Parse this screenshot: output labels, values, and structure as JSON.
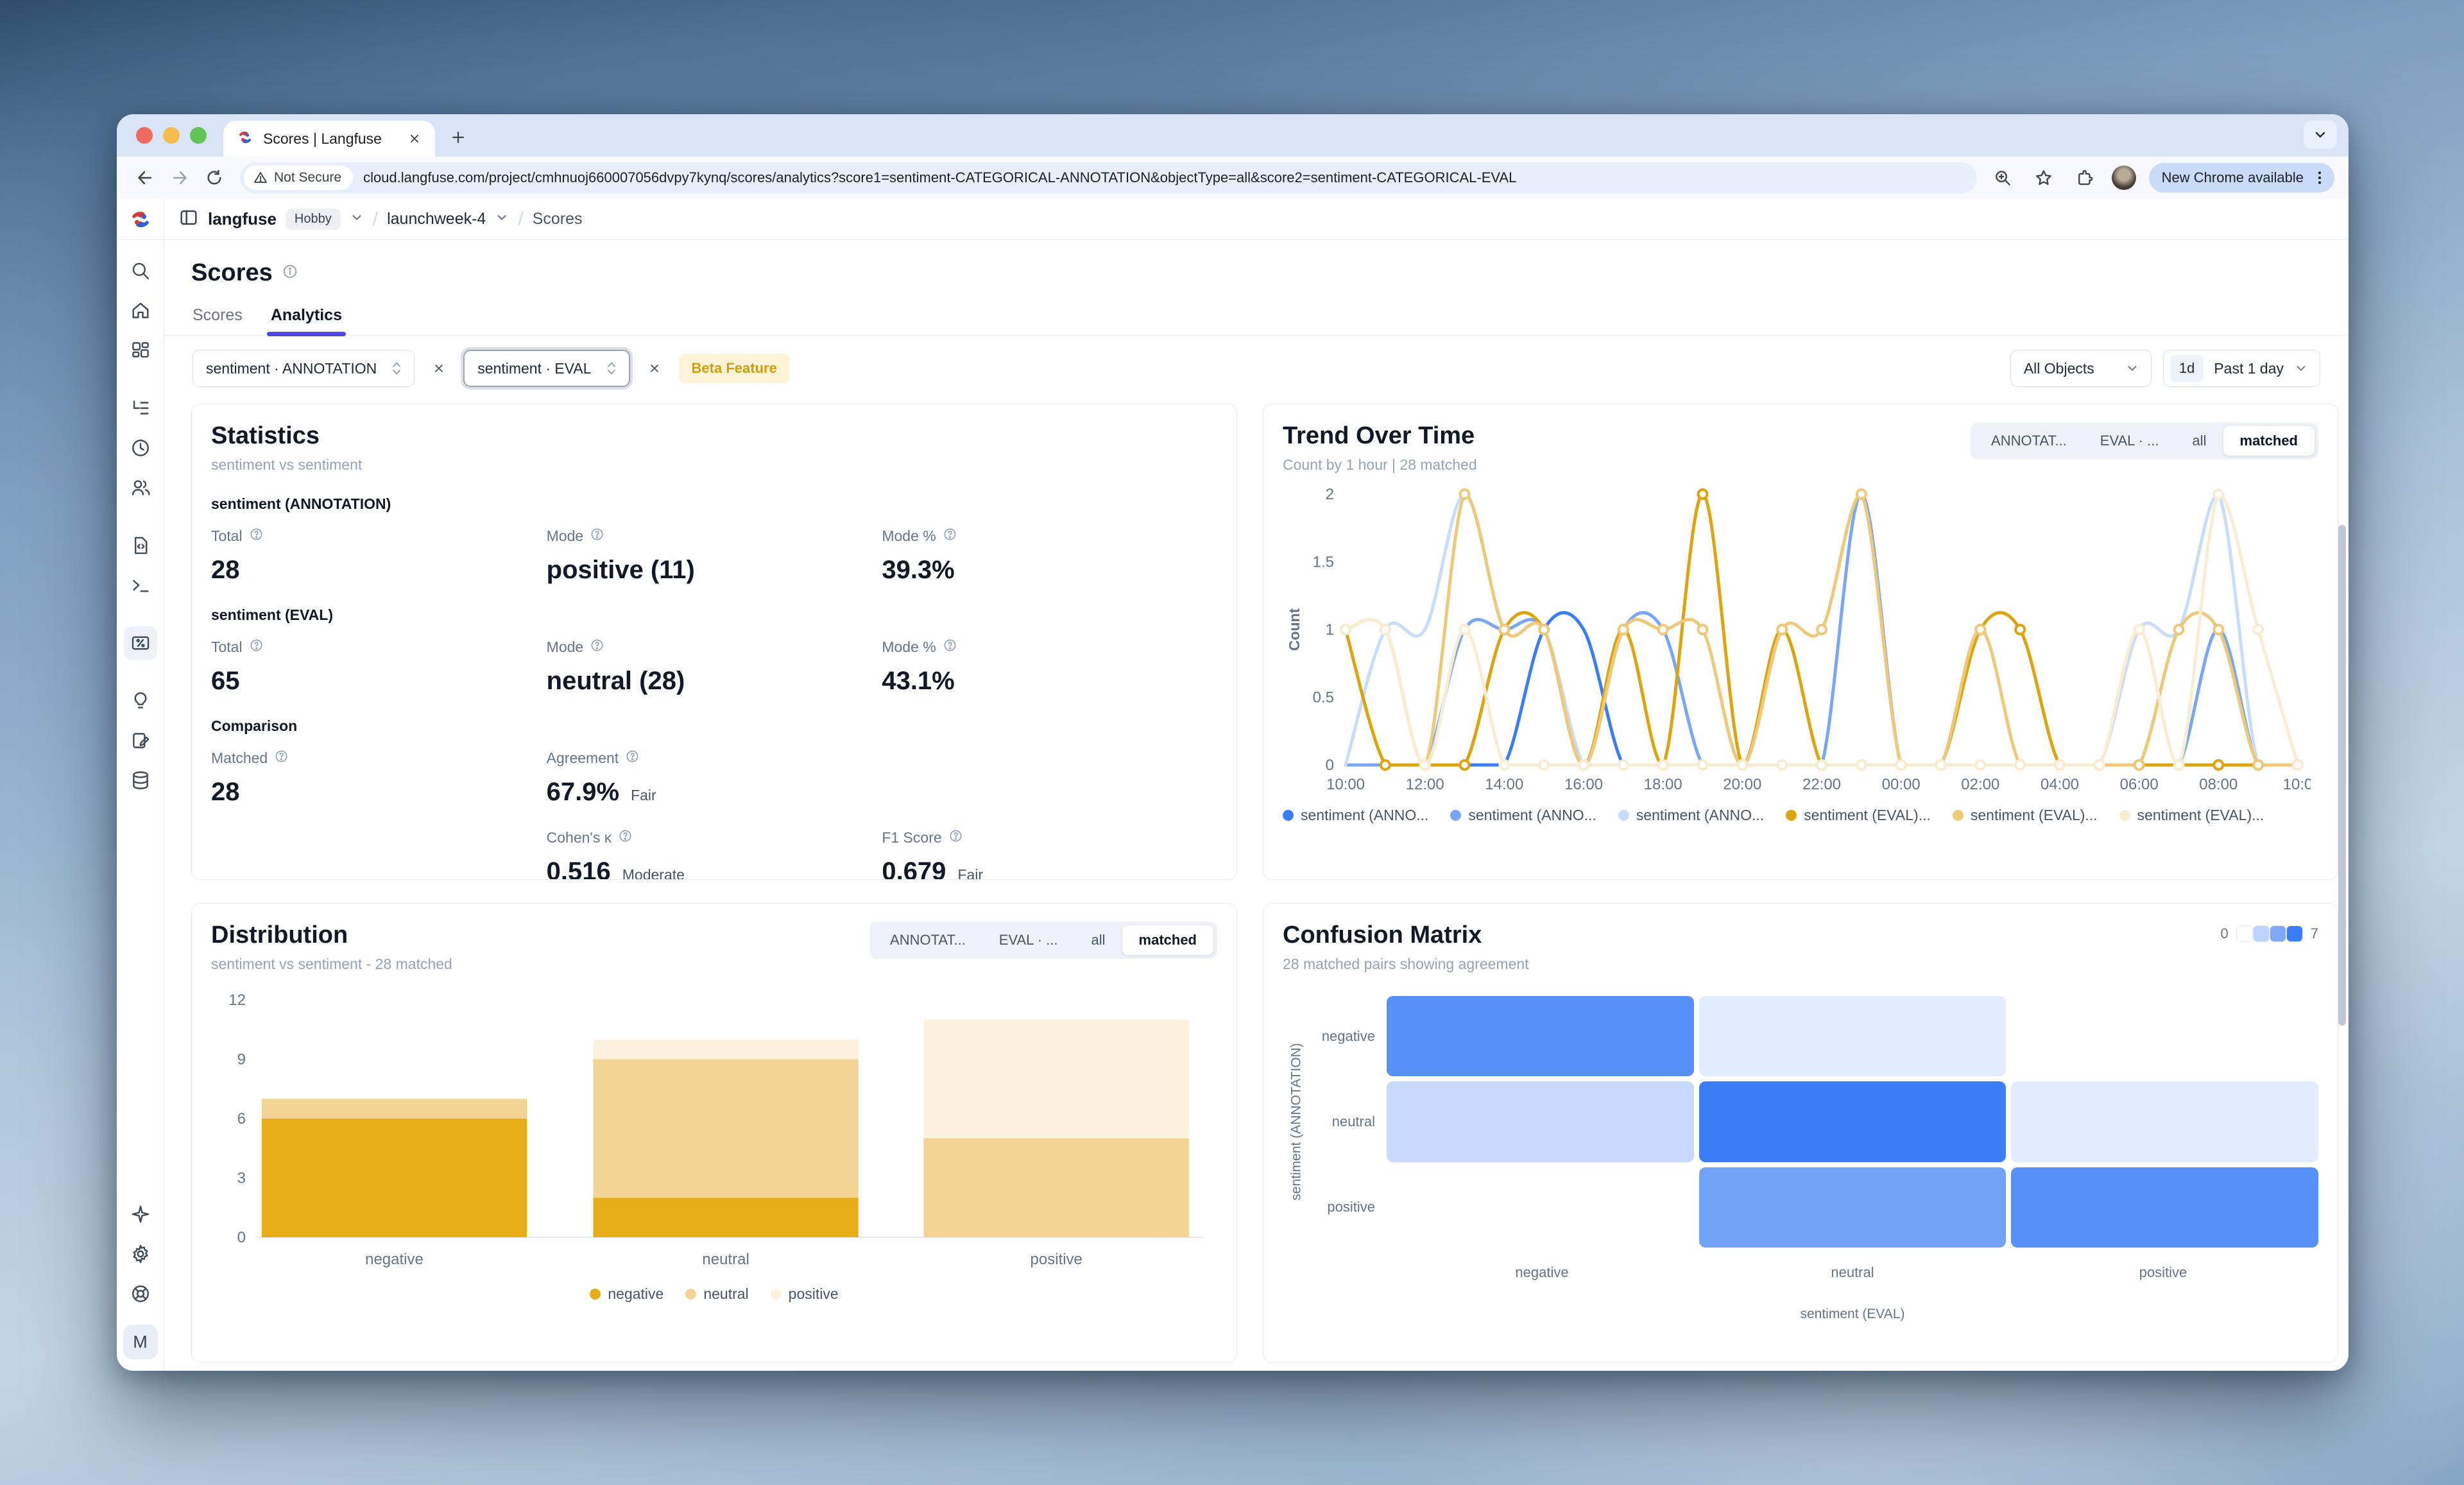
{
  "browser": {
    "tab_title": "Scores | Langfuse",
    "security_label": "Not Secure",
    "url": "cloud.langfuse.com/project/cmhnuoj660007056dvpy7kynq/scores/analytics?score1=sentiment-CATEGORICAL-ANNOTATION&objectType=all&score2=sentiment-CATEGORICAL-EVAL",
    "update_chip": "New Chrome available"
  },
  "header": {
    "org": "langfuse",
    "plan_badge": "Hobby",
    "project": "launchweek-4",
    "page": "Scores"
  },
  "sidebar": {
    "top_icons": [
      "search",
      "home",
      "dashboard",
      "tracing",
      "sessions",
      "users",
      "prompts",
      "playground",
      "scores",
      "evaluation",
      "annotation",
      "datasets"
    ],
    "active_icon": "scores",
    "bottom_icons": [
      "sparkle",
      "settings",
      "support"
    ],
    "avatar_label": "M"
  },
  "page": {
    "title": "Scores",
    "tabs": [
      "Scores",
      "Analytics"
    ],
    "active_tab": "Analytics",
    "filters": {
      "score1": "sentiment · ANNOTATION",
      "score2": "sentiment · EVAL",
      "beta_badge": "Beta Feature",
      "object_filter": "All Objects",
      "range_short": "1d",
      "range_label": "Past 1 day"
    }
  },
  "view_toggle": {
    "items": [
      "ANNOTAT...",
      "EVAL · ...",
      "all",
      "matched"
    ],
    "active": "matched"
  },
  "statistics": {
    "title": "Statistics",
    "subtitle": "sentiment vs sentiment",
    "annotation": {
      "heading": "sentiment (ANNOTATION)",
      "total": {
        "label": "Total",
        "value": "28"
      },
      "mode": {
        "label": "Mode",
        "value": "positive (11)"
      },
      "mode_pct": {
        "label": "Mode %",
        "value": "39.3%"
      }
    },
    "eval": {
      "heading": "sentiment (EVAL)",
      "total": {
        "label": "Total",
        "value": "65"
      },
      "mode": {
        "label": "Mode",
        "value": "neutral (28)"
      },
      "mode_pct": {
        "label": "Mode %",
        "value": "43.1%"
      }
    },
    "comparison": {
      "heading": "Comparison",
      "matched": {
        "label": "Matched",
        "value": "28"
      },
      "agreement": {
        "label": "Agreement",
        "value": "67.9%",
        "qualifier": "Fair"
      },
      "kappa": {
        "label": "Cohen's κ",
        "value": "0.516",
        "qualifier": "Moderate"
      },
      "f1": {
        "label": "F1 Score",
        "value": "0.679",
        "qualifier": "Fair"
      }
    }
  },
  "trend": {
    "title": "Trend Over Time",
    "subtitle": "Count by 1 hour | 28 matched"
  },
  "distribution": {
    "title": "Distribution",
    "subtitle": "sentiment vs sentiment - 28 matched"
  },
  "confusion": {
    "title": "Confusion Matrix",
    "subtitle": "28 matched pairs showing agreement",
    "scale_min": "0",
    "scale_max": "7",
    "x_title": "sentiment (EVAL)",
    "y_title": "sentiment (ANNOTATION)"
  },
  "chart_data": [
    {
      "id": "trend",
      "type": "line",
      "title": "Trend Over Time",
      "ylabel": "Count",
      "ylim": [
        0,
        2
      ],
      "yticks": [
        0,
        0.5,
        1,
        1.5,
        2
      ],
      "x": [
        "10:00",
        "11:00",
        "12:00",
        "13:00",
        "14:00",
        "15:00",
        "16:00",
        "17:00",
        "18:00",
        "19:00",
        "20:00",
        "21:00",
        "22:00",
        "23:00",
        "00:00",
        "01:00",
        "02:00",
        "03:00",
        "04:00",
        "05:00",
        "06:00",
        "07:00",
        "08:00",
        "09:00",
        "10:00"
      ],
      "xtick_labels": [
        "10:00",
        "12:00",
        "14:00",
        "16:00",
        "18:00",
        "20:00",
        "22:00",
        "00:00",
        "02:00",
        "04:00",
        "06:00",
        "08:00",
        "10:0"
      ],
      "legend_position": "bottom",
      "grid": false,
      "series": [
        {
          "name": "sentiment (ANNO...",
          "color": "#3b7df6",
          "markers": false,
          "values": [
            0,
            0,
            0,
            0,
            0,
            1,
            1,
            0,
            0,
            0,
            0,
            0,
            0,
            0,
            0,
            0,
            0,
            0,
            0,
            0,
            0,
            0,
            0,
            0,
            0
          ]
        },
        {
          "name": "sentiment (ANNO...",
          "color": "#79a7f8",
          "markers": false,
          "values": [
            0,
            0,
            0,
            1,
            1,
            1,
            0,
            1,
            1,
            0,
            0,
            0,
            0,
            2,
            0,
            0,
            0,
            0,
            0,
            0,
            0,
            0,
            1,
            0,
            0
          ]
        },
        {
          "name": "sentiment (ANNO...",
          "color": "#c8dcfb",
          "markers": false,
          "values": [
            0,
            1,
            1,
            2,
            1,
            1,
            0,
            0,
            0,
            0,
            0,
            0,
            0,
            0,
            0,
            0,
            0,
            0,
            0,
            0,
            1,
            1,
            2,
            0,
            0
          ]
        },
        {
          "name": "sentiment (EVAL)...",
          "color": "#dea40e",
          "markers": true,
          "values": [
            1,
            0,
            0,
            0,
            1,
            1,
            0,
            1,
            0,
            2,
            0,
            1,
            0,
            0,
            0,
            0,
            1,
            1,
            0,
            0,
            0,
            0,
            0,
            0,
            0
          ]
        },
        {
          "name": "sentiment (EVAL)...",
          "color": "#eec979",
          "markers": true,
          "values": [
            1,
            1,
            0,
            2,
            1,
            1,
            0,
            1,
            1,
            1,
            0,
            1,
            1,
            2,
            0,
            0,
            1,
            0,
            0,
            0,
            0,
            1,
            1,
            0,
            0
          ]
        },
        {
          "name": "sentiment (EVAL)...",
          "color": "#f8ecd2",
          "markers": true,
          "values": [
            1,
            1,
            0,
            1,
            0,
            0,
            0,
            0,
            0,
            0,
            0,
            0,
            0,
            0,
            0,
            0,
            0,
            0,
            0,
            0,
            1,
            0,
            2,
            1,
            0
          ]
        }
      ]
    },
    {
      "id": "distribution",
      "type": "bar",
      "stacked": true,
      "categories": [
        "negative",
        "neutral",
        "positive"
      ],
      "series": [
        {
          "name": "negative",
          "color": "#e7ad17",
          "values": [
            6,
            2,
            0
          ]
        },
        {
          "name": "neutral",
          "color": "#f3d494",
          "values": [
            1,
            7,
            5
          ]
        },
        {
          "name": "positive",
          "color": "#fbf1dc",
          "values": [
            0,
            1,
            6
          ]
        }
      ],
      "ylim": [
        0,
        12
      ],
      "yticks": [
        0,
        3,
        6,
        9,
        12
      ],
      "grid": false,
      "legend_position": "bottom"
    },
    {
      "id": "confusion",
      "type": "heatmap",
      "rows": [
        "negative",
        "neutral",
        "positive"
      ],
      "cols": [
        "negative",
        "neutral",
        "positive"
      ],
      "values": [
        [
          6,
          1,
          0
        ],
        [
          2,
          7,
          1
        ],
        [
          0,
          5,
          6
        ]
      ],
      "vmin": 0,
      "vmax": 7,
      "color_low": "#ffffff",
      "color_high": "#3b7df6",
      "scale_swatch_fracs": [
        0,
        0.33,
        0.66,
        1
      ]
    }
  ]
}
